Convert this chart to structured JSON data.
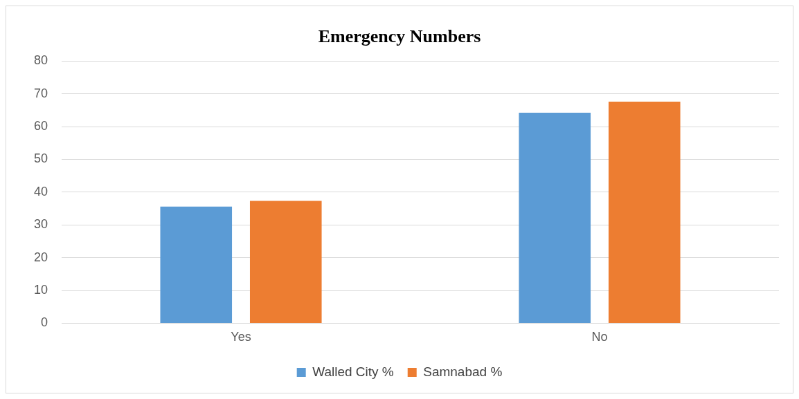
{
  "chart_data": {
    "type": "bar",
    "title": "Emergency Numbers",
    "categories": [
      "Yes",
      "No"
    ],
    "series": [
      {
        "name": "Walled City %",
        "color": "#5b9bd5",
        "values": [
          35.6,
          64.2
        ]
      },
      {
        "name": "Samnabad %",
        "color": "#ed7d31",
        "values": [
          37.3,
          67.6
        ]
      }
    ],
    "ylim": [
      0,
      80
    ],
    "yticks": [
      0,
      10,
      20,
      30,
      40,
      50,
      60,
      70,
      80
    ],
    "grid": "y",
    "legend": "bottom"
  }
}
